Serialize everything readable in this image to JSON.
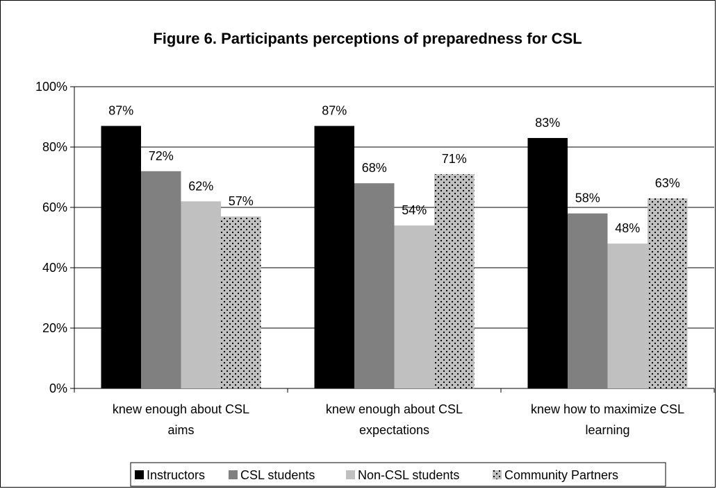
{
  "chart_data": {
    "type": "bar",
    "title": "Figure 6. Participants perceptions of preparedness for CSL",
    "categories": [
      [
        "knew enough about CSL",
        "aims"
      ],
      [
        "knew enough about CSL",
        "expectations"
      ],
      [
        "knew how to maximize CSL",
        "learning"
      ]
    ],
    "series": [
      {
        "name": "Instructors",
        "values": [
          87,
          87,
          83
        ],
        "labels": [
          "87%",
          "87%",
          "83%"
        ],
        "color": "#000000",
        "pattern": "solid"
      },
      {
        "name": "CSL students",
        "values": [
          72,
          68,
          58
        ],
        "labels": [
          "72%",
          "68%",
          "58%"
        ],
        "color": "#808080",
        "pattern": "solid"
      },
      {
        "name": "Non-CSL students",
        "values": [
          62,
          54,
          48
        ],
        "labels": [
          "62%",
          "54%",
          "48%"
        ],
        "color": "#c0c0c0",
        "pattern": "solid"
      },
      {
        "name": "Community Partners",
        "values": [
          57,
          71,
          63
        ],
        "labels": [
          "57%",
          "71%",
          "63%"
        ],
        "color": "#c0c0c0",
        "pattern": "dots"
      }
    ],
    "ylim": [
      0,
      100
    ],
    "yticks": [
      0,
      20,
      40,
      60,
      80,
      100
    ],
    "ytick_labels": [
      "0%",
      "20%",
      "40%",
      "60%",
      "80%",
      "100%"
    ],
    "grid": true,
    "legend": "bottom"
  }
}
